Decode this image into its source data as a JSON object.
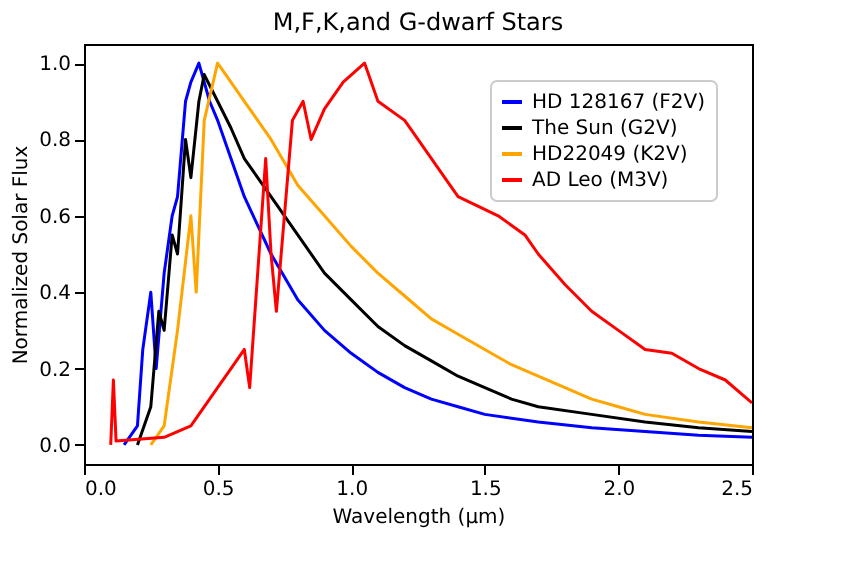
{
  "chart_data": {
    "type": "line",
    "title": "M,F,K,and G-dwarf Stars",
    "xlabel": "Wavelength (μm)",
    "ylabel": "Normalized Solar Flux",
    "xlim": [
      0,
      2.5
    ],
    "xticks": [
      {
        "value": 0,
        "label": "0.0"
      },
      {
        "value": 0.5,
        "label": "0.5"
      },
      {
        "value": 1,
        "label": "1.0"
      },
      {
        "value": 1.5,
        "label": "1.5"
      },
      {
        "value": 2,
        "label": "2.0"
      },
      {
        "value": 2.5,
        "label": "2.5"
      }
    ],
    "ylim": [
      -0.05,
      1.05
    ],
    "yticks": [
      {
        "value": 0,
        "label": "0.0"
      },
      {
        "value": 0.2,
        "label": "0.2"
      },
      {
        "value": 0.4,
        "label": "0.4"
      },
      {
        "value": 0.6,
        "label": "0.6"
      },
      {
        "value": 0.8,
        "label": "0.8"
      },
      {
        "value": 1,
        "label": "1.0"
      }
    ],
    "grid": false,
    "legend": "top right",
    "marker": "none",
    "line_style": "solid",
    "series": [
      {
        "name": "HD 128167 (F2V)",
        "color": "#0000ff",
        "x": [
          0.15,
          0.2,
          0.22,
          0.25,
          0.27,
          0.3,
          0.33,
          0.35,
          0.38,
          0.4,
          0.43,
          0.47,
          0.5,
          0.6,
          0.7,
          0.8,
          0.9,
          1.0,
          1.1,
          1.2,
          1.3,
          1.4,
          1.5,
          1.7,
          1.9,
          2.1,
          2.3,
          2.5
        ],
        "values": [
          0.0,
          0.05,
          0.25,
          0.4,
          0.2,
          0.45,
          0.6,
          0.65,
          0.9,
          0.95,
          1.0,
          0.9,
          0.85,
          0.65,
          0.5,
          0.38,
          0.3,
          0.24,
          0.19,
          0.15,
          0.12,
          0.1,
          0.08,
          0.06,
          0.045,
          0.035,
          0.025,
          0.02
        ]
      },
      {
        "name": "The Sun (G2V)",
        "color": "#000000",
        "x": [
          0.2,
          0.25,
          0.28,
          0.3,
          0.33,
          0.35,
          0.38,
          0.4,
          0.43,
          0.45,
          0.5,
          0.55,
          0.6,
          0.7,
          0.8,
          0.9,
          1.0,
          1.1,
          1.2,
          1.3,
          1.4,
          1.5,
          1.6,
          1.7,
          1.9,
          2.1,
          2.3,
          2.5
        ],
        "values": [
          0.0,
          0.1,
          0.35,
          0.3,
          0.55,
          0.5,
          0.8,
          0.7,
          0.9,
          0.97,
          0.9,
          0.83,
          0.75,
          0.65,
          0.55,
          0.45,
          0.38,
          0.31,
          0.26,
          0.22,
          0.18,
          0.15,
          0.12,
          0.1,
          0.08,
          0.06,
          0.045,
          0.035
        ]
      },
      {
        "name": "HD22049 (K2V)",
        "color": "#ffa500",
        "x": [
          0.25,
          0.3,
          0.35,
          0.4,
          0.42,
          0.45,
          0.5,
          0.55,
          0.6,
          0.7,
          0.8,
          0.9,
          1.0,
          1.1,
          1.2,
          1.3,
          1.4,
          1.5,
          1.6,
          1.7,
          1.8,
          1.9,
          2.0,
          2.1,
          2.3,
          2.5
        ],
        "values": [
          0.0,
          0.05,
          0.3,
          0.6,
          0.4,
          0.85,
          1.0,
          0.95,
          0.9,
          0.8,
          0.68,
          0.6,
          0.52,
          0.45,
          0.39,
          0.33,
          0.29,
          0.25,
          0.21,
          0.18,
          0.15,
          0.12,
          0.1,
          0.08,
          0.06,
          0.045
        ]
      },
      {
        "name": "AD Leo (M3V)",
        "color": "#ff0000",
        "x": [
          0.1,
          0.11,
          0.12,
          0.3,
          0.4,
          0.5,
          0.55,
          0.6,
          0.62,
          0.65,
          0.68,
          0.7,
          0.72,
          0.75,
          0.78,
          0.82,
          0.85,
          0.9,
          0.97,
          1.05,
          1.1,
          1.2,
          1.25,
          1.35,
          1.4,
          1.55,
          1.65,
          1.7,
          1.8,
          1.9,
          2.0,
          2.1,
          2.2,
          2.3,
          2.4,
          2.5
        ],
        "values": [
          0.0,
          0.17,
          0.01,
          0.02,
          0.05,
          0.15,
          0.2,
          0.25,
          0.15,
          0.45,
          0.75,
          0.5,
          0.35,
          0.6,
          0.85,
          0.9,
          0.8,
          0.88,
          0.95,
          1.0,
          0.9,
          0.85,
          0.8,
          0.7,
          0.65,
          0.6,
          0.55,
          0.5,
          0.42,
          0.35,
          0.3,
          0.25,
          0.24,
          0.2,
          0.17,
          0.11
        ]
      }
    ]
  }
}
